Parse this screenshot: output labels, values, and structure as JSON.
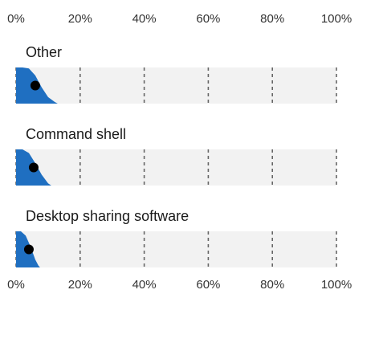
{
  "chart_data": {
    "type": "area",
    "x_axis": {
      "ticks": [
        "0%",
        "20%",
        "40%",
        "60%",
        "80%",
        "100%"
      ],
      "range": [
        0,
        100
      ],
      "unit": "%",
      "shown_top_and_bottom": true
    },
    "grid": "vertical dashed lines at 20% intervals",
    "colors": {
      "distribution": "#1f6fc1",
      "marker": "#000000",
      "panel_background": "#f2f2f2",
      "grid": "#666666"
    },
    "panels": [
      {
        "title": "Other",
        "point_estimate": 6,
        "distribution": [
          [
            0,
            1.0
          ],
          [
            2,
            1.0
          ],
          [
            4,
            0.97
          ],
          [
            6,
            0.78
          ],
          [
            8,
            0.45
          ],
          [
            10,
            0.18
          ],
          [
            12,
            0.05
          ],
          [
            13,
            0
          ]
        ]
      },
      {
        "title": "Command shell",
        "point_estimate": 5.5,
        "distribution": [
          [
            0,
            1.0
          ],
          [
            2,
            1.0
          ],
          [
            4,
            0.9
          ],
          [
            6,
            0.62
          ],
          [
            8,
            0.3
          ],
          [
            10,
            0.06
          ],
          [
            11,
            0
          ]
        ]
      },
      {
        "title": "Desktop sharing software",
        "point_estimate": 4,
        "distribution": [
          [
            0,
            1.0
          ],
          [
            1.5,
            1.0
          ],
          [
            3,
            0.88
          ],
          [
            4.5,
            0.58
          ],
          [
            6,
            0.22
          ],
          [
            7,
            0.05
          ],
          [
            7.5,
            0
          ]
        ]
      }
    ]
  }
}
